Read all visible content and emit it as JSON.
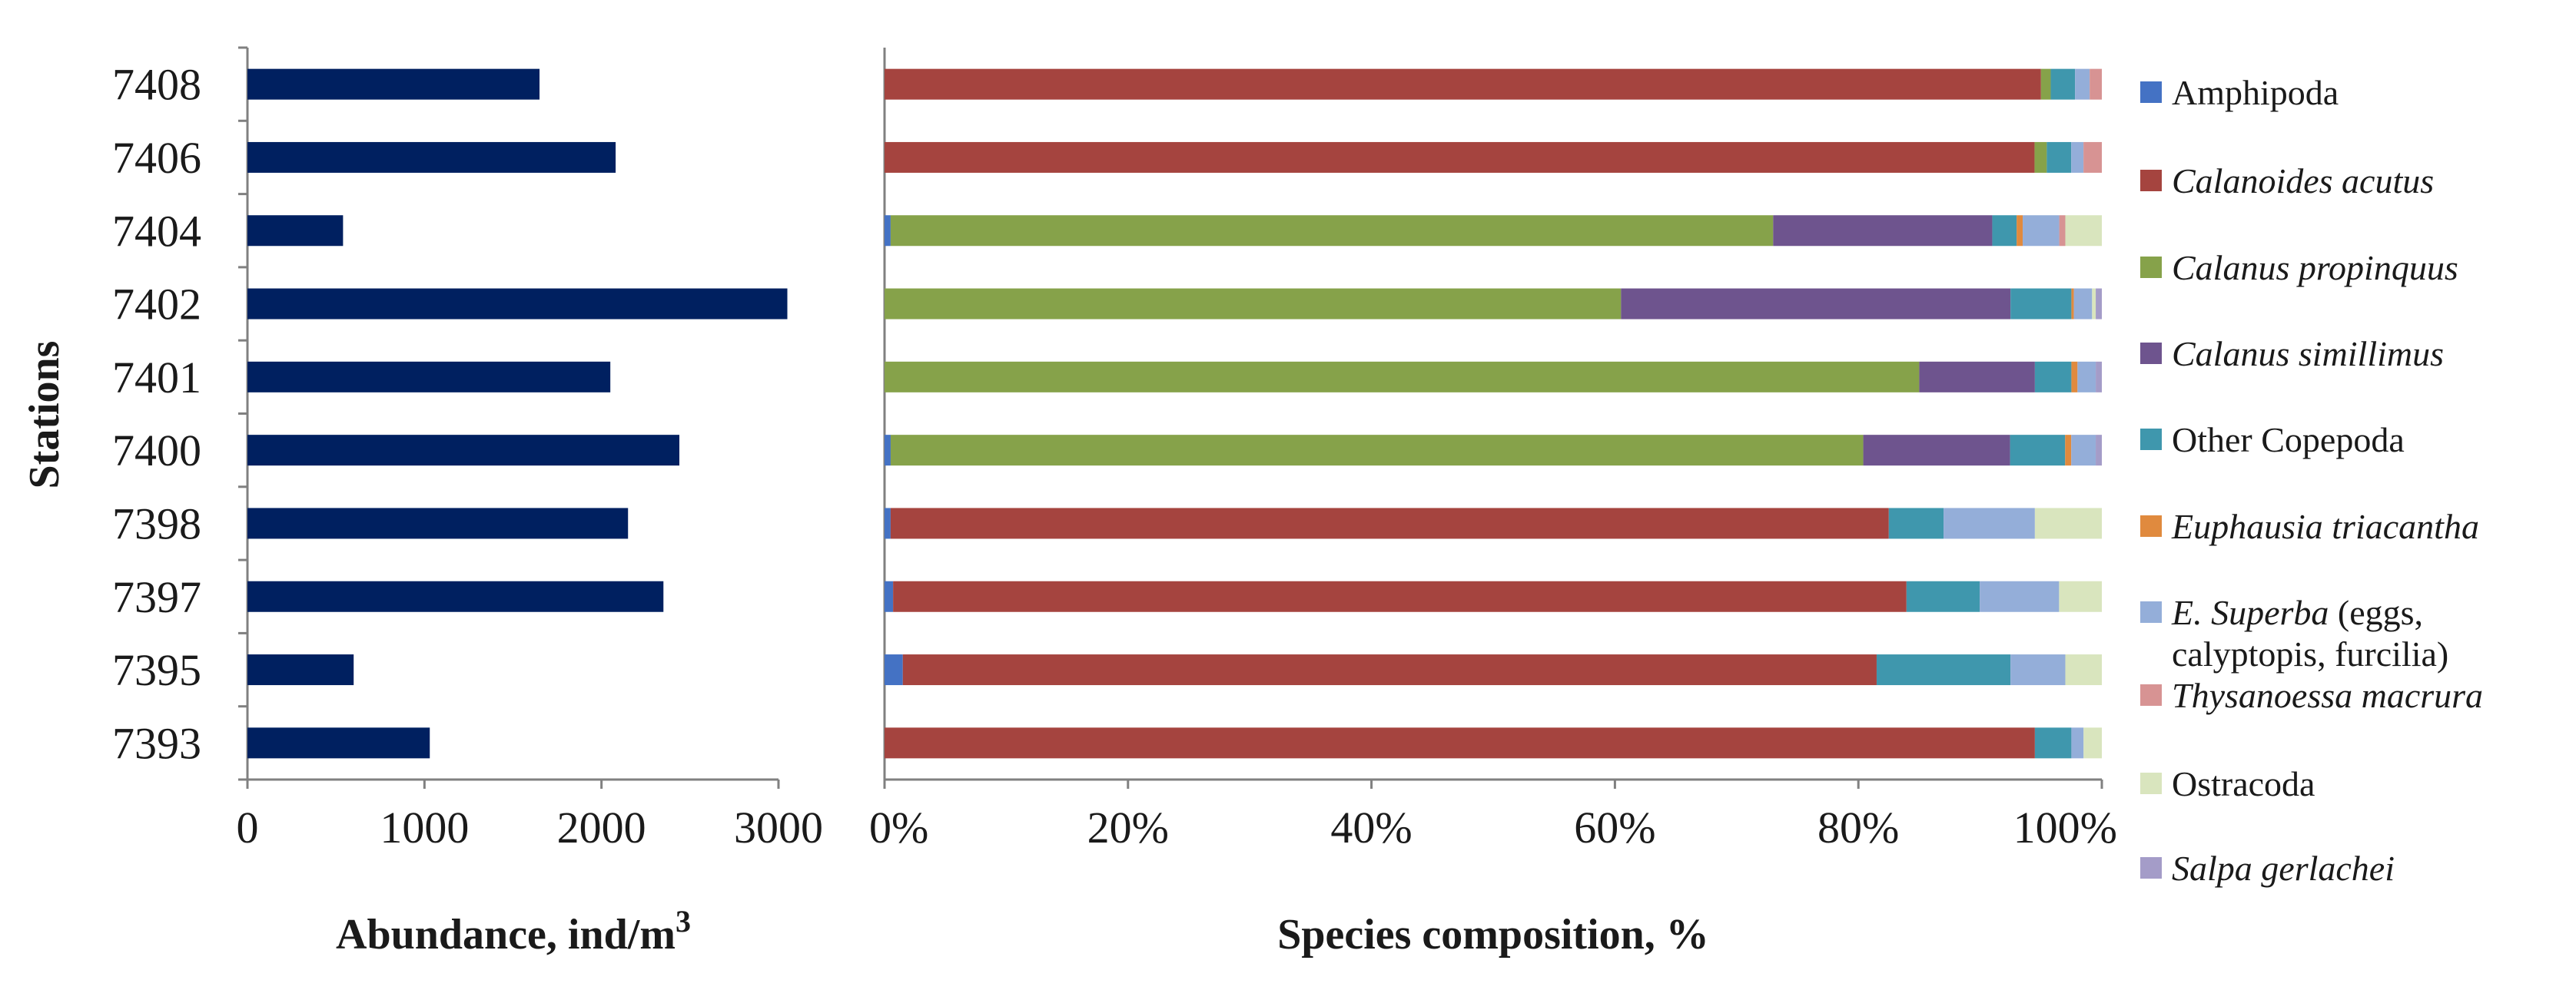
{
  "chart_data": [
    {
      "type": "bar",
      "orientation": "horizontal",
      "ylabel": "Stations",
      "xlabel_prefix": "Abundance, ind/m",
      "xlabel_sup": "3",
      "categories": [
        "7408",
        "7406",
        "7404",
        "7402",
        "7401",
        "7400",
        "7398",
        "7397",
        "7395",
        "7393"
      ],
      "values": [
        1650,
        2080,
        540,
        3050,
        2050,
        2440,
        2150,
        2350,
        600,
        1030
      ],
      "xlim": [
        0,
        3000
      ],
      "xticks": [
        0,
        1000,
        2000,
        3000
      ],
      "xtick_labels": [
        "0",
        "1000",
        "2000",
        "3000"
      ],
      "color": "#002060",
      "grid": false
    },
    {
      "type": "bar",
      "stacked": "percent",
      "orientation": "horizontal",
      "xlabel": "Species composition, %",
      "categories": [
        "7408",
        "7406",
        "7404",
        "7402",
        "7401",
        "7400",
        "7398",
        "7397",
        "7395",
        "7393"
      ],
      "xticks": [
        0,
        20,
        40,
        60,
        80,
        100
      ],
      "xtick_labels": [
        "0%",
        "20%",
        "40%",
        "60%",
        "80%",
        "100%"
      ],
      "legend_position": "right",
      "series": [
        {
          "name": "Amphipoda",
          "italic": false,
          "color": "#4472C4",
          "values": [
            0,
            0,
            0.5,
            0,
            0,
            0.5,
            0.5,
            0.7,
            1.5,
            0
          ]
        },
        {
          "name": "Calanoides acutus",
          "italic": true,
          "color": "#A5443F",
          "values": [
            95,
            94,
            0,
            0,
            0,
            0,
            82,
            83,
            80,
            94.5
          ]
        },
        {
          "name": "Calanus propinquus",
          "italic": true,
          "color": "#86A24A",
          "values": [
            0.8,
            1,
            72.5,
            60.5,
            85,
            79.5,
            0,
            0,
            0,
            0
          ]
        },
        {
          "name": "Calanus simillimus",
          "italic": true,
          "color": "#6E548E",
          "values": [
            0,
            0,
            18,
            32,
            9.5,
            12,
            0,
            0,
            0,
            0
          ]
        },
        {
          "name": "Other Copepoda",
          "italic": false,
          "color": "#3F97AD",
          "values": [
            2,
            2,
            2,
            5,
            3,
            4.5,
            4.5,
            6,
            11,
            3
          ]
        },
        {
          "name": "Euphausia triacantha",
          "italic": true,
          "color": "#E08A3E",
          "values": [
            0,
            0,
            0.5,
            0.2,
            0.5,
            0.5,
            0,
            0,
            0,
            0
          ]
        },
        {
          "name_italic": "E. Superba",
          "name_rest": " (eggs,",
          "name_line2": "calyptopis, furcilia)",
          "color": "#94AED9",
          "values": [
            1.2,
            1,
            3,
            1.5,
            1.5,
            2,
            7.5,
            6.5,
            4.5,
            1
          ]
        },
        {
          "name": "Thysanoessa macrura",
          "italic": true,
          "color": "#D79393",
          "values": [
            1,
            1.5,
            0.5,
            0,
            0,
            0,
            0,
            0,
            0,
            0
          ]
        },
        {
          "name": "Ostracoda",
          "italic": false,
          "color": "#D9E5BE",
          "values": [
            0,
            0,
            3,
            0.3,
            0,
            0,
            5.5,
            3.5,
            3,
            1.5
          ]
        },
        {
          "name": "Salpa gerlachei",
          "italic": true,
          "color": "#A49CC8",
          "values": [
            0,
            0,
            0,
            0.5,
            0.5,
            0.5,
            0,
            0,
            0,
            0
          ]
        }
      ]
    }
  ]
}
